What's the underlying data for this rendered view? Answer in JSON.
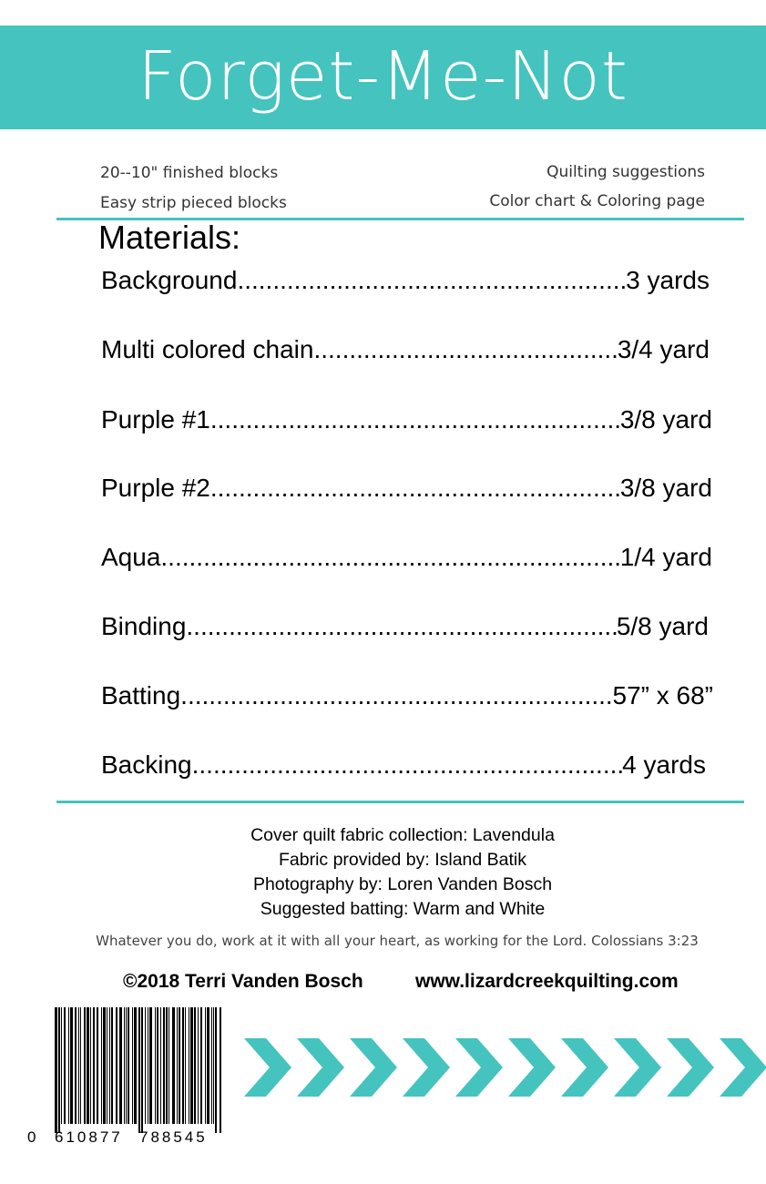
{
  "header": {
    "title": "Forget-Me-Not"
  },
  "features": {
    "left": [
      "20--10\" finished blocks",
      "Easy strip pieced blocks"
    ],
    "right": [
      "Quilting suggestions",
      "Color chart & Coloring page"
    ]
  },
  "materials": {
    "heading": "Materials:",
    "items": [
      {
        "name": "Background",
        "amount": "3 yards"
      },
      {
        "name": "Multi colored chain",
        "amount": "3/4 yard"
      },
      {
        "name": "Purple #1",
        "amount": "3/8 yard"
      },
      {
        "name": "Purple #2",
        "amount": "3/8 yard"
      },
      {
        "name": "Aqua",
        "amount": "1/4 yard"
      },
      {
        "name": "Binding",
        "amount": "5/8 yard"
      },
      {
        "name": "Batting",
        "amount": "57” x 68”"
      },
      {
        "name": "Backing",
        "amount": "4 yards"
      }
    ]
  },
  "credits": {
    "line1": "Cover quilt fabric collection: Lavendula",
    "line2": "Fabric provided by: Island Batik",
    "line3": "Photography by: Loren Vanden Bosch",
    "line4": "Suggested batting: Warm and White"
  },
  "verse": "Whatever you do, work at it with all your heart, as working for the Lord. Colossians 3:23",
  "footer": {
    "copyright": "©2018 Terri Vanden Bosch",
    "website": "www.lizardcreekquilting.com"
  },
  "barcode": {
    "digits": [
      "0",
      "610877",
      "788545"
    ]
  },
  "colors": {
    "accent": "#45c3bf"
  }
}
